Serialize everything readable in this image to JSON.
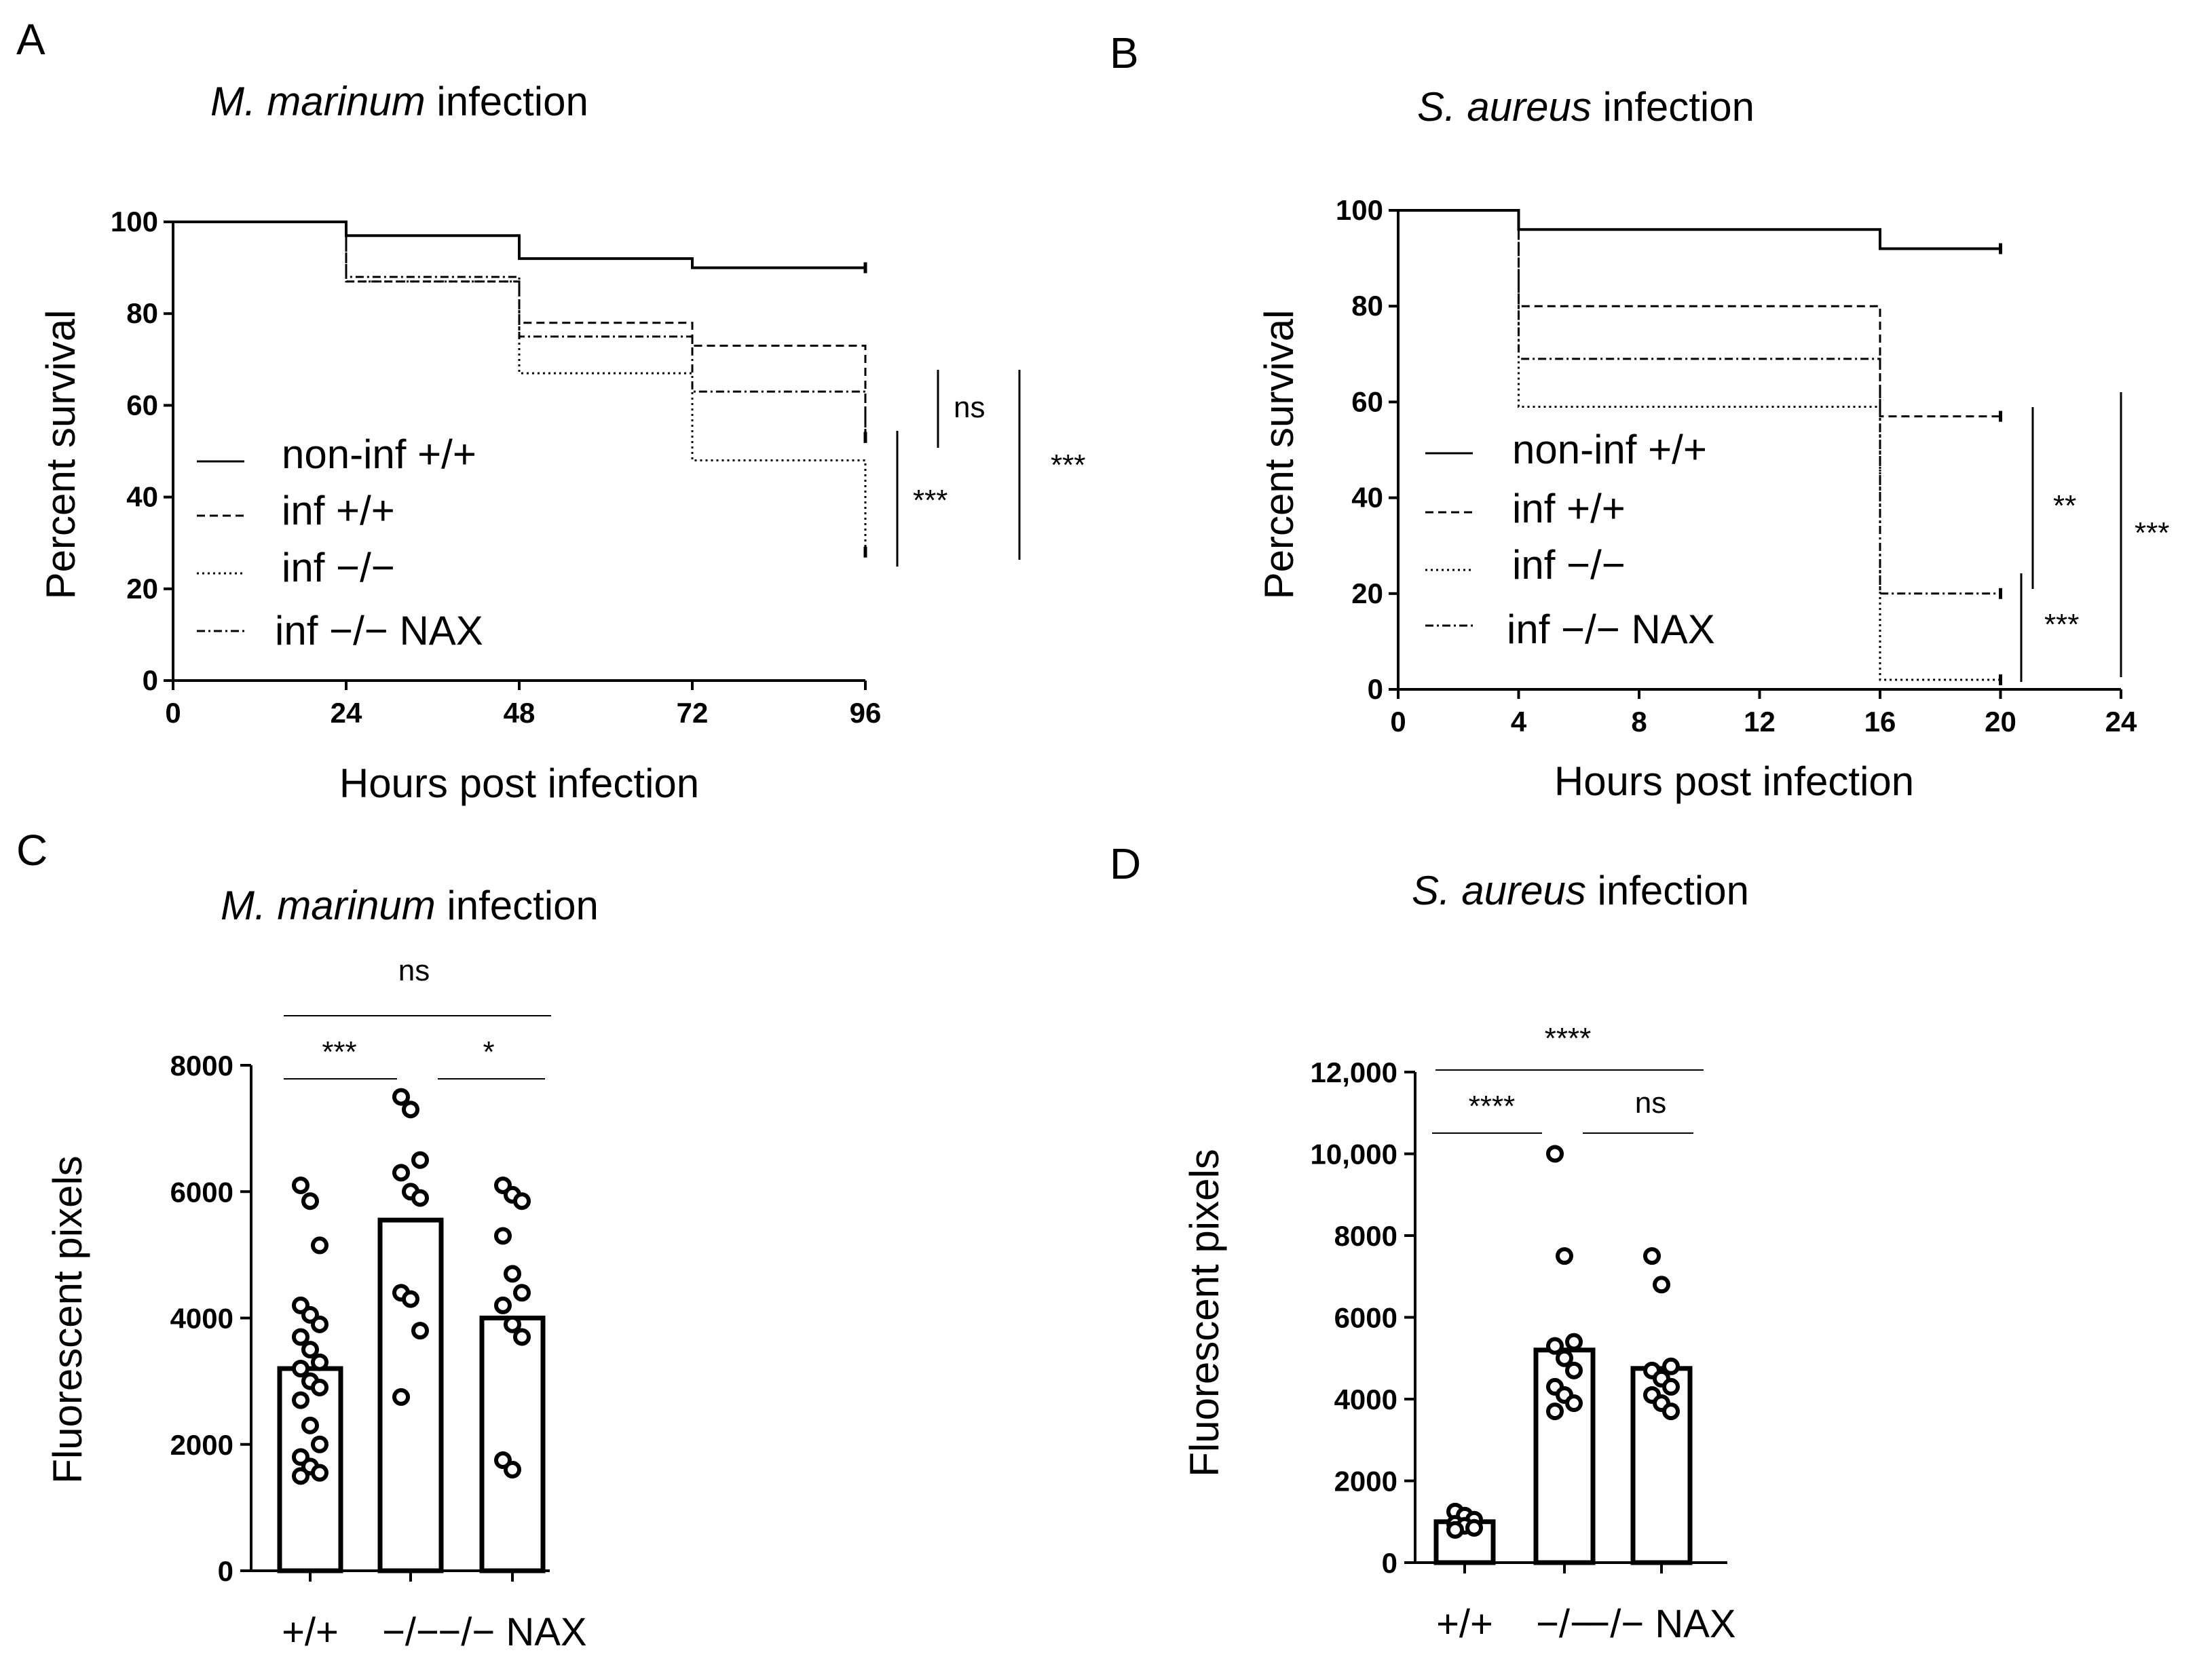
{
  "chart_data": [
    {
      "panel": "A",
      "type": "line",
      "subtype": "kaplan-meier",
      "title_italic": "M. marinum",
      "title_rest": "infection",
      "xlabel": "Hours post infection",
      "ylabel": "Percent survival",
      "xlim": [
        0,
        96
      ],
      "ylim": [
        0,
        100
      ],
      "xticks": [
        "0",
        "24",
        "48",
        "72",
        "96"
      ],
      "yticks": [
        "0",
        "20",
        "40",
        "60",
        "80",
        "100"
      ],
      "series": [
        {
          "name": "non-inf +/+",
          "style": "solid",
          "x": [
            0,
            24,
            48,
            72,
            96
          ],
          "values": [
            100,
            97,
            92,
            90,
            90
          ]
        },
        {
          "name": "inf +/+",
          "style": "dashed",
          "x": [
            0,
            24,
            48,
            72,
            96
          ],
          "values": [
            100,
            87,
            78,
            73,
            53
          ]
        },
        {
          "name": "inf −/−",
          "style": "dotted",
          "x": [
            0,
            24,
            48,
            72,
            96
          ],
          "values": [
            100,
            87,
            67,
            48,
            28
          ]
        },
        {
          "name": "inf −/− NAX",
          "style": "dashdot",
          "x": [
            0,
            24,
            48,
            72,
            96
          ],
          "values": [
            100,
            88,
            75,
            63,
            53
          ]
        }
      ],
      "annotations": [
        "ns",
        "***",
        "***"
      ]
    },
    {
      "panel": "B",
      "type": "line",
      "subtype": "kaplan-meier",
      "title_italic": "S. aureus",
      "title_rest": "infection",
      "xlabel": "Hours post infection",
      "ylabel": "Percent survival",
      "xlim": [
        0,
        24
      ],
      "ylim": [
        0,
        100
      ],
      "xticks": [
        "0",
        "4",
        "8",
        "12",
        "16",
        "20",
        "24"
      ],
      "yticks": [
        "0",
        "20",
        "40",
        "60",
        "80",
        "100"
      ],
      "series": [
        {
          "name": "non-inf +/+",
          "style": "solid",
          "x": [
            0,
            4,
            16,
            20
          ],
          "values": [
            100,
            96,
            92,
            92
          ]
        },
        {
          "name": "inf +/+",
          "style": "dashed",
          "x": [
            0,
            4,
            16,
            20
          ],
          "values": [
            100,
            80,
            57,
            57
          ]
        },
        {
          "name": "inf −/−",
          "style": "dotted",
          "x": [
            0,
            4,
            16,
            20
          ],
          "values": [
            100,
            59,
            2,
            2
          ]
        },
        {
          "name": "inf −/−  NAX",
          "style": "dashdot",
          "x": [
            0,
            4,
            16,
            20
          ],
          "values": [
            100,
            69,
            20,
            20
          ]
        }
      ],
      "annotations": [
        "**",
        "***",
        "***"
      ]
    },
    {
      "panel": "C",
      "type": "bar",
      "with_points": true,
      "title_italic": "M. marinum",
      "title_rest": "infection",
      "ylabel": "Fluorescent pixels",
      "ylim": [
        0,
        8000
      ],
      "yticks": [
        "0",
        "2000",
        "4000",
        "6000",
        "8000"
      ],
      "categories": [
        "+/+",
        "−/−",
        "−/−  NAX"
      ],
      "values": [
        3200,
        5550,
        4000
      ],
      "points": [
        [
          6100,
          5850,
          5150,
          4200,
          4050,
          3900,
          3700,
          3500,
          3300,
          3200,
          3000,
          2900,
          2700,
          2300,
          2000,
          1800,
          1650,
          1550,
          1500
        ],
        [
          7500,
          7300,
          6500,
          6300,
          6000,
          5900,
          4400,
          4300,
          3800,
          2750
        ],
        [
          6100,
          5950,
          5850,
          5300,
          4700,
          4400,
          4200,
          3900,
          3700,
          1750,
          1600
        ]
      ],
      "significance": [
        {
          "label": "ns",
          "from": 0,
          "to": 2
        },
        {
          "label": "***",
          "from": 0,
          "to": 1
        },
        {
          "label": "*",
          "from": 1,
          "to": 2
        }
      ]
    },
    {
      "panel": "D",
      "type": "bar",
      "with_points": true,
      "title_italic": "S. aureus",
      "title_rest": "infection",
      "ylabel": "Fluorescent pixels",
      "ylim": [
        0,
        12000
      ],
      "yticks": [
        "0",
        "2000",
        "4000",
        "6000",
        "8000",
        "10,000",
        "12,000"
      ],
      "categories": [
        "+/+",
        "−/−",
        "−/−  NAX"
      ],
      "values": [
        1000,
        5200,
        4750
      ],
      "points": [
        [
          1250,
          1150,
          1050,
          950,
          900,
          850,
          800
        ],
        [
          10000,
          7500,
          5400,
          5300,
          5000,
          4700,
          4300,
          4100,
          3900,
          3700
        ],
        [
          7500,
          6800,
          4800,
          4700,
          4500,
          4300,
          4100,
          3900,
          3700
        ]
      ],
      "significance": [
        {
          "label": "****",
          "from": 0,
          "to": 2
        },
        {
          "label": "****",
          "from": 0,
          "to": 1
        },
        {
          "label": "ns",
          "from": 1,
          "to": 2
        }
      ]
    }
  ]
}
